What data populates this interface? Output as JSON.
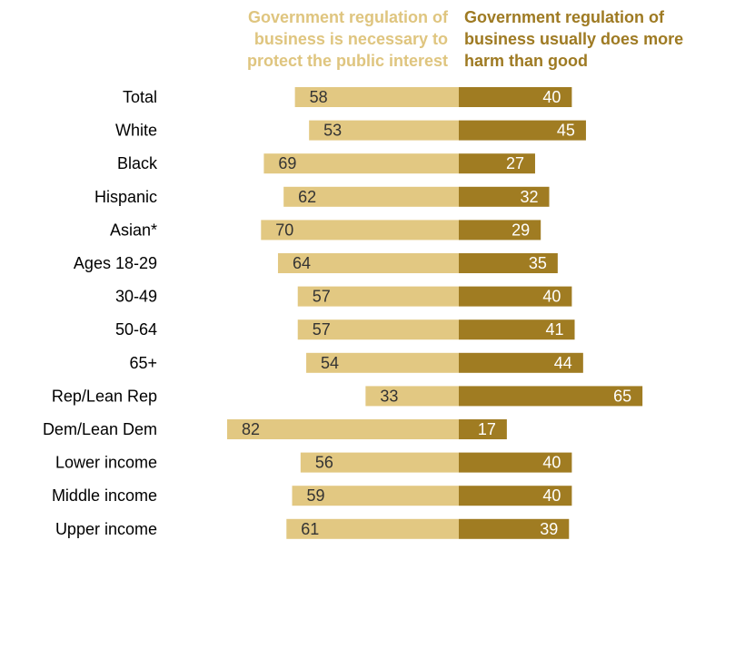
{
  "chart_data": {
    "type": "bar",
    "legend": {
      "left_lines": [
        "Government regulation of",
        "business is necessary to",
        "protect the public interest"
      ],
      "right_lines": [
        "Government regulation of",
        "business usually does more",
        "harm than good"
      ]
    },
    "series": [
      {
        "name": "Government regulation of business is necessary to protect the public interest",
        "color": "#e2c882",
        "values": [
          58,
          53,
          69,
          62,
          70,
          64,
          57,
          57,
          54,
          33,
          82,
          56,
          59,
          61
        ]
      },
      {
        "name": "Government regulation of business usually does more harm than good",
        "color": "#a07c22",
        "values": [
          40,
          45,
          27,
          32,
          29,
          35,
          40,
          41,
          44,
          65,
          17,
          40,
          40,
          39
        ]
      }
    ],
    "categories": [
      "Total",
      "White",
      "Black",
      "Hispanic",
      "Asian*",
      "Ages 18-29",
      "30-49",
      "50-64",
      "65+",
      "Rep/Lean Rep",
      "Dem/Lean Dem",
      "Lower income",
      "Middle income",
      "Upper income"
    ],
    "groups": [
      [
        0
      ],
      [
        1,
        2,
        3,
        4
      ],
      [
        5,
        6,
        7,
        8
      ],
      [
        9,
        10
      ],
      [
        11,
        12,
        13
      ]
    ]
  }
}
